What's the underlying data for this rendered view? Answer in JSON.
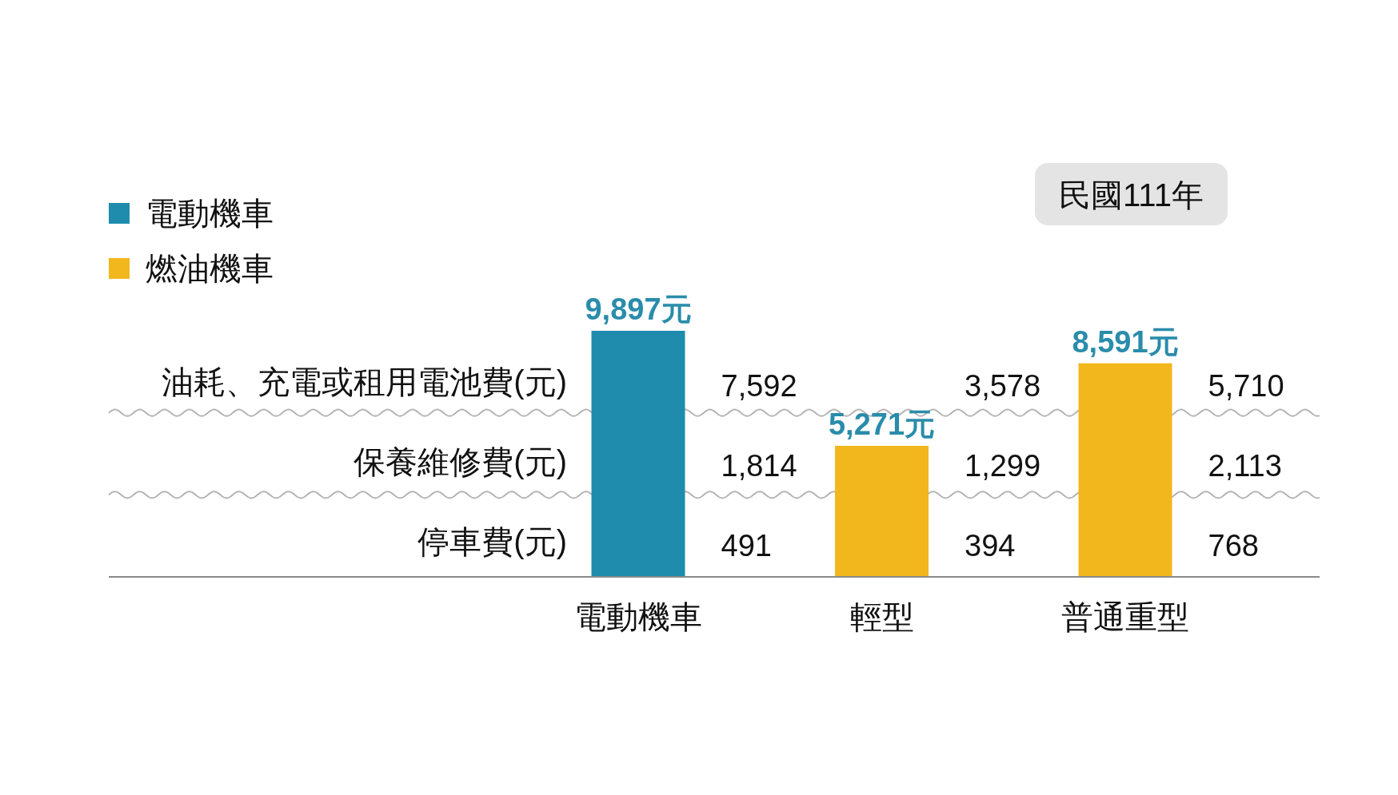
{
  "chart_data": {
    "type": "bar",
    "categories": [
      "電動機車",
      "輕型",
      "普通重型"
    ],
    "series": [
      {
        "name": "電動機車",
        "color": "#1f8bad",
        "values": [
          9897,
          null,
          null
        ],
        "value_labels": [
          "9,897元",
          null,
          null
        ]
      },
      {
        "name": "燃油機車",
        "color": "#f2b71d",
        "values": [
          null,
          5271,
          8591
        ],
        "value_labels": [
          null,
          "5,271元",
          "8,591元"
        ]
      }
    ],
    "legend": "top left",
    "ref_lines": [
      {
        "axis": "y",
        "value": 6600,
        "color": "#9a9a9a"
      },
      {
        "axis": "y",
        "value": 3300,
        "color": "#9a9a9a"
      }
    ],
    "annotations": [
      "民國111年",
      "油耗、充電或租用電池費(元)",
      "7,592",
      "3,578",
      "5,710",
      "保養維修費(元)",
      "1,814",
      "1,299",
      "2,113",
      "停車費(元)",
      "491",
      "394",
      "768"
    ]
  }
}
